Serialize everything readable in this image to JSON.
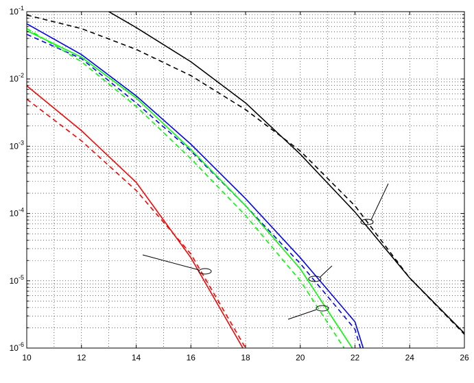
{
  "chart_data": {
    "type": "line",
    "ylog": true,
    "grid": true,
    "xlim": [
      10,
      26
    ],
    "xticks": [
      10,
      12,
      14,
      16,
      18,
      20,
      22,
      24,
      26
    ],
    "ylim": [
      1e-06,
      0.1
    ],
    "yticks": [
      {
        "value": 1e-06,
        "label": "10^-6"
      },
      {
        "value": 1e-05,
        "label": "10^-5"
      },
      {
        "value": 0.0001,
        "label": "10^-4"
      },
      {
        "value": 0.001,
        "label": "10^-3"
      },
      {
        "value": 0.01,
        "label": "10^-2"
      },
      {
        "value": 0.1,
        "label": "10^-1"
      }
    ],
    "series": [
      {
        "color": "#000000",
        "linestyle": "solid",
        "x": [
          13,
          14,
          16,
          18,
          20,
          22,
          24,
          26
        ],
        "values": [
          0.1,
          0.058,
          0.018,
          0.0044,
          0.00076,
          0.000105,
          1.1e-05,
          1.66e-06
        ]
      },
      {
        "color": "#000000",
        "linestyle": "dashed",
        "x": [
          10,
          12,
          14,
          16,
          18,
          20,
          22,
          24,
          26
        ],
        "values": [
          0.089,
          0.056,
          0.0275,
          0.0112,
          0.0035,
          0.00085,
          0.00013,
          1.1e-05,
          1.6e-06
        ]
      },
      {
        "color": "#0000ff",
        "linestyle": "solid",
        "x": [
          10,
          12,
          14,
          16,
          18,
          20,
          22,
          22.3
        ],
        "values": [
          0.066,
          0.023,
          0.0056,
          0.00107,
          0.000166,
          2.2e-05,
          2.45e-06,
          1e-06
        ]
      },
      {
        "color": "#0000ff",
        "linestyle": "dashed",
        "x": [
          10,
          12,
          14,
          16,
          18,
          20,
          22,
          22.2
        ],
        "values": [
          0.046,
          0.02,
          0.0044,
          0.00085,
          0.00013,
          1.8e-05,
          1.9e-06,
          1e-06
        ]
      },
      {
        "color": "#00ff00",
        "linestyle": "solid",
        "x": [
          10,
          12,
          14,
          16,
          18,
          20,
          21.9
        ],
        "values": [
          0.052,
          0.021,
          0.0052,
          0.00089,
          0.00013,
          1.5e-05,
          1e-06
        ]
      },
      {
        "color": "#00ff00",
        "linestyle": "dashed",
        "x": [
          10,
          12,
          14,
          16,
          18,
          20,
          21.6
        ],
        "values": [
          0.056,
          0.018,
          0.0039,
          0.00065,
          9.3e-05,
          1e-05,
          1e-06
        ]
      },
      {
        "color": "#ff0000",
        "linestyle": "solid",
        "x": [
          10,
          12,
          14,
          16,
          17.9
        ],
        "values": [
          0.0079,
          0.0017,
          0.00029,
          2.2e-05,
          1e-06
        ]
      },
      {
        "color": "#ff0000",
        "linestyle": "dashed",
        "x": [
          10,
          12,
          14,
          16,
          18
        ],
        "values": [
          0.005,
          0.0012,
          0.00022,
          2.5e-05,
          1e-06
        ]
      }
    ]
  }
}
